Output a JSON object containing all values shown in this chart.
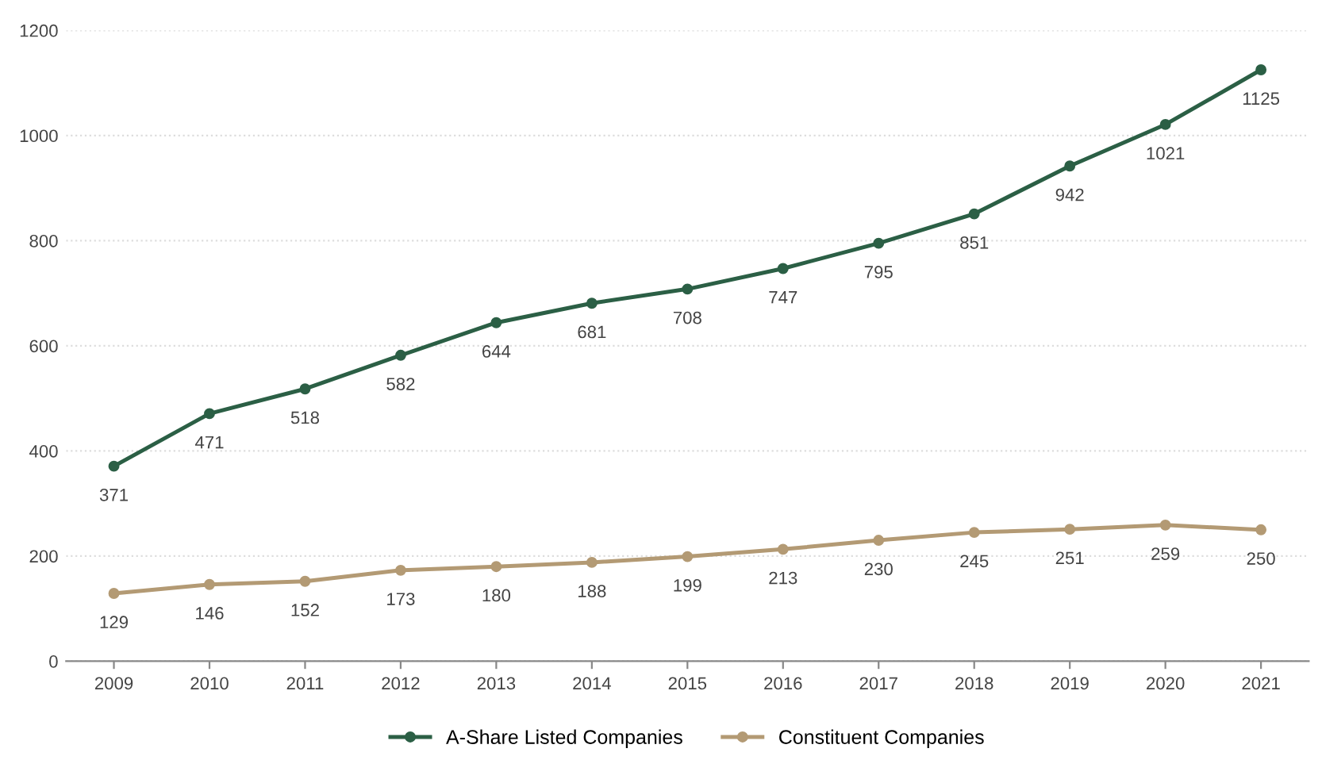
{
  "chart_data": {
    "type": "line",
    "categories": [
      "2009",
      "2010",
      "2011",
      "2012",
      "2013",
      "2014",
      "2015",
      "2016",
      "2017",
      "2018",
      "2019",
      "2020",
      "2021"
    ],
    "series": [
      {
        "name": "A-Share Listed Companies",
        "color": "#2b5f45",
        "values": [
          371,
          471,
          518,
          582,
          644,
          681,
          708,
          747,
          795,
          851,
          942,
          1021,
          1125
        ]
      },
      {
        "name": "Constituent Companies",
        "color": "#b39a74",
        "values": [
          129,
          146,
          152,
          173,
          180,
          188,
          199,
          213,
          230,
          245,
          251,
          259,
          250
        ]
      }
    ],
    "ylim": [
      0,
      1200
    ],
    "yticks": [
      0,
      200,
      400,
      600,
      800,
      1000,
      1200
    ],
    "grid": "y",
    "legend": "bottom",
    "marker": "circle",
    "line_style": "solid",
    "data_labels": true
  }
}
